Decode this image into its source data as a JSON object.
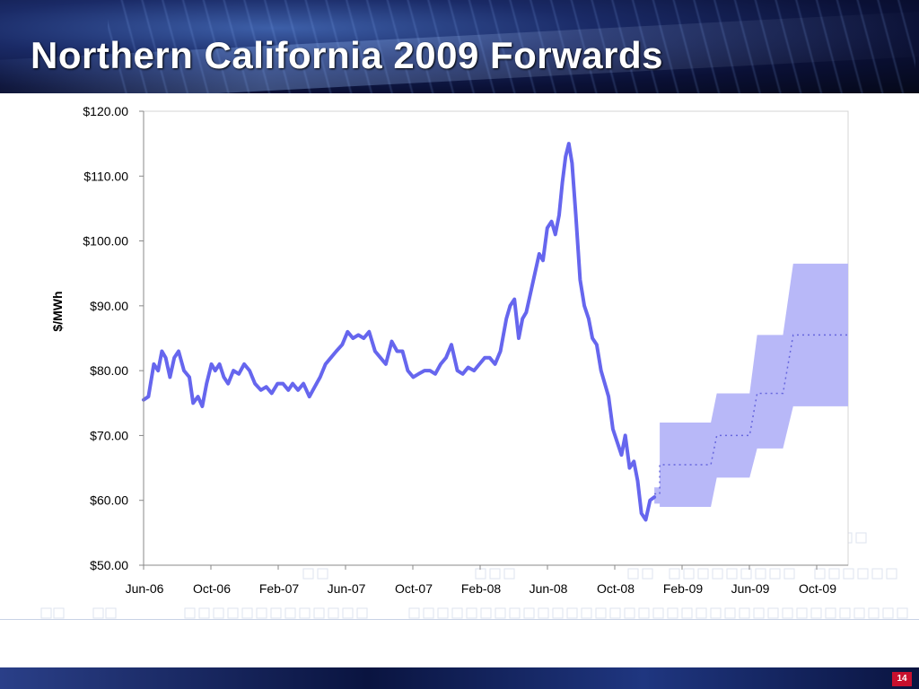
{
  "slide": {
    "title": "Northern California 2009 Forwards",
    "page_number": "14"
  },
  "colors": {
    "history_line": "#6666ee",
    "forward_band": "#b8b8f8",
    "forward_mid": "#6666dd"
  },
  "chart_data": {
    "type": "line",
    "ylabel": "$/MWh",
    "ylim": [
      50,
      120
    ],
    "y_ticks": [
      "$120.00",
      "$110.00",
      "$100.00",
      "$90.00",
      "$80.00",
      "$70.00",
      "$60.00",
      "$50.00"
    ],
    "x_ticks": [
      "Jun-06",
      "Oct-06",
      "Feb-07",
      "Jun-07",
      "Oct-07",
      "Feb-08",
      "Jun-08",
      "Oct-08",
      "Feb-09",
      "Jun-09",
      "Oct-09"
    ],
    "grid": false,
    "series": [
      {
        "values_note_unused": null,
        "points": [
          [
            "2006-06-01",
            75.5
          ],
          [
            "2006-06-10",
            76
          ],
          [
            "2006-06-20",
            81
          ],
          [
            "2006-06-28",
            80
          ],
          [
            "2006-07-05",
            83
          ],
          [
            "2006-07-12",
            82
          ],
          [
            "2006-07-20",
            79
          ],
          [
            "2006-07-28",
            82
          ],
          [
            "2006-08-05",
            83
          ],
          [
            "2006-08-15",
            80
          ],
          [
            "2006-08-25",
            79
          ],
          [
            "2006-09-01",
            75
          ],
          [
            "2006-09-10",
            76
          ],
          [
            "2006-09-18",
            74.5
          ],
          [
            "2006-09-26",
            78
          ],
          [
            "2006-10-05",
            81
          ],
          [
            "2006-10-12",
            80
          ],
          [
            "2006-10-20",
            81
          ],
          [
            "2006-10-28",
            79
          ],
          [
            "2006-11-05",
            78
          ],
          [
            "2006-11-15",
            80
          ],
          [
            "2006-11-25",
            79.5
          ],
          [
            "2006-12-05",
            81
          ],
          [
            "2006-12-15",
            80
          ],
          [
            "2006-12-25",
            78
          ],
          [
            "2007-01-05",
            77
          ],
          [
            "2007-01-15",
            77.5
          ],
          [
            "2007-01-25",
            76.5
          ],
          [
            "2007-02-05",
            78
          ],
          [
            "2007-02-15",
            78
          ],
          [
            "2007-02-25",
            77
          ],
          [
            "2007-03-05",
            78
          ],
          [
            "2007-03-15",
            77
          ],
          [
            "2007-03-25",
            78
          ],
          [
            "2007-04-05",
            76
          ],
          [
            "2007-04-15",
            77.5
          ],
          [
            "2007-04-25",
            79
          ],
          [
            "2007-05-05",
            81
          ],
          [
            "2007-05-15",
            82
          ],
          [
            "2007-05-25",
            83
          ],
          [
            "2007-06-05",
            84
          ],
          [
            "2007-06-15",
            86
          ],
          [
            "2007-06-25",
            85
          ],
          [
            "2007-07-05",
            85.5
          ],
          [
            "2007-07-15",
            85
          ],
          [
            "2007-07-25",
            86
          ],
          [
            "2007-08-05",
            83
          ],
          [
            "2007-08-15",
            82
          ],
          [
            "2007-08-25",
            81
          ],
          [
            "2007-09-05",
            84.5
          ],
          [
            "2007-09-15",
            83
          ],
          [
            "2007-09-25",
            83
          ],
          [
            "2007-10-05",
            80
          ],
          [
            "2007-10-15",
            79
          ],
          [
            "2007-10-25",
            79.5
          ],
          [
            "2007-11-05",
            80
          ],
          [
            "2007-11-15",
            80
          ],
          [
            "2007-11-25",
            79.5
          ],
          [
            "2007-12-05",
            81
          ],
          [
            "2007-12-15",
            82
          ],
          [
            "2007-12-25",
            84
          ],
          [
            "2008-01-05",
            80
          ],
          [
            "2008-01-15",
            79.5
          ],
          [
            "2008-01-25",
            80.5
          ],
          [
            "2008-02-05",
            80
          ],
          [
            "2008-02-15",
            81
          ],
          [
            "2008-02-25",
            82
          ],
          [
            "2008-03-05",
            82
          ],
          [
            "2008-03-15",
            81
          ],
          [
            "2008-03-25",
            83
          ],
          [
            "2008-04-05",
            88
          ],
          [
            "2008-04-12",
            90
          ],
          [
            "2008-04-20",
            91
          ],
          [
            "2008-04-28",
            85
          ],
          [
            "2008-05-05",
            88
          ],
          [
            "2008-05-12",
            89
          ],
          [
            "2008-05-20",
            92
          ],
          [
            "2008-05-28",
            95
          ],
          [
            "2008-06-05",
            98
          ],
          [
            "2008-06-12",
            97
          ],
          [
            "2008-06-20",
            102
          ],
          [
            "2008-06-28",
            103
          ],
          [
            "2008-07-05",
            101
          ],
          [
            "2008-07-12",
            104
          ],
          [
            "2008-07-18",
            109
          ],
          [
            "2008-07-24",
            113
          ],
          [
            "2008-07-30",
            115
          ],
          [
            "2008-08-05",
            112
          ],
          [
            "2008-08-12",
            104
          ],
          [
            "2008-08-20",
            94
          ],
          [
            "2008-08-28",
            90
          ],
          [
            "2008-09-05",
            88
          ],
          [
            "2008-09-12",
            85
          ],
          [
            "2008-09-20",
            84
          ],
          [
            "2008-09-28",
            80
          ],
          [
            "2008-10-05",
            78
          ],
          [
            "2008-10-12",
            76
          ],
          [
            "2008-10-20",
            71
          ],
          [
            "2008-10-28",
            69
          ],
          [
            "2008-11-05",
            67
          ],
          [
            "2008-11-12",
            70
          ],
          [
            "2008-11-20",
            65
          ],
          [
            "2008-11-28",
            66
          ],
          [
            "2008-12-05",
            63
          ],
          [
            "2008-12-12",
            58
          ],
          [
            "2008-12-20",
            57
          ],
          [
            "2008-12-28",
            60
          ],
          [
            "2009-01-05",
            60.5
          ]
        ]
      },
      {
        "kind": "forward_band",
        "steps": [
          {
            "start": "2009-01-05",
            "end": "2009-01-15",
            "low": 59.5,
            "mid": 61,
            "high": 62
          },
          {
            "start": "2009-01-15",
            "end": "2009-04-01",
            "low": 59,
            "mid": 65.5,
            "high": 72
          },
          {
            "start": "2009-04-01",
            "end": "2009-04-20",
            "low": 59,
            "mid": 65.5,
            "high": 72
          },
          {
            "start": "2009-05-01",
            "end": "2009-07-01",
            "low": 63.5,
            "mid": 70,
            "high": 76.5
          },
          {
            "start": "2009-07-15",
            "end": "2009-09-01",
            "low": 68,
            "mid": 76.5,
            "high": 85.5
          },
          {
            "start": "2009-09-20",
            "end": "2009-12-31",
            "low": 74.5,
            "mid": 85.5,
            "high": 96.5
          }
        ]
      }
    ]
  }
}
